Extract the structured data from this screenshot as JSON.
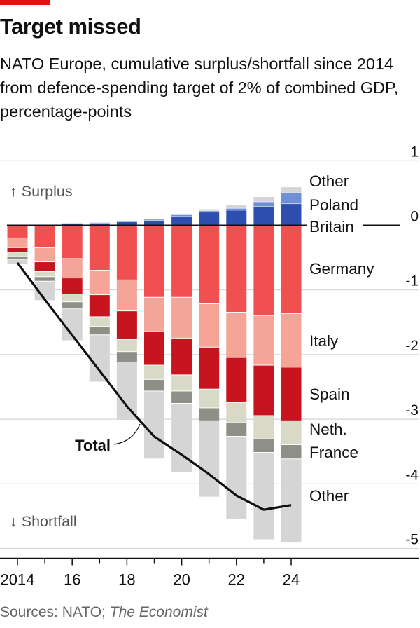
{
  "header": {
    "title": "Target missed",
    "subtitle": "NATO Europe, cumulative surplus/shortfall since 2014 from defence-spending target of 2% of combined GDP, percentage-points"
  },
  "source": {
    "prefix": "Sources: NATO; ",
    "publication": "The Economist"
  },
  "chart_data": {
    "type": "bar",
    "stacked": true,
    "grid": true,
    "ylim": [
      -5,
      1
    ],
    "y_ticks": [
      1,
      0,
      -1,
      -2,
      -3,
      -4,
      -5
    ],
    "x": [
      2014,
      2015,
      2016,
      2017,
      2018,
      2019,
      2020,
      2021,
      2022,
      2023,
      2024
    ],
    "x_tick_labels": [
      "2014",
      "16",
      "18",
      "20",
      "22",
      "24"
    ],
    "direction_labels": {
      "up": "↑ Surplus",
      "down": "↓ Shortfall"
    },
    "surplus_series": [
      {
        "name": "Britain",
        "color": "#2e4fb0",
        "values": [
          0.0,
          0.01,
          0.02,
          0.03,
          0.05,
          0.07,
          0.14,
          0.2,
          0.23,
          0.29,
          0.33
        ]
      },
      {
        "name": "Poland",
        "color": "#6f8fd6",
        "values": [
          0.0,
          0.0,
          0.01,
          0.01,
          0.01,
          0.02,
          0.02,
          0.02,
          0.03,
          0.07,
          0.17
        ]
      },
      {
        "name": "Other",
        "color": "#d5d5d5",
        "values": [
          0.0,
          0.0,
          0.0,
          0.0,
          0.0,
          0.01,
          0.02,
          0.03,
          0.06,
          0.08,
          0.09
        ]
      }
    ],
    "shortfall_series": [
      {
        "name": "Germany",
        "color": "#f05050",
        "values": [
          -0.2,
          -0.35,
          -0.52,
          -0.7,
          -0.85,
          -1.12,
          -1.12,
          -1.22,
          -1.35,
          -1.4,
          -1.37
        ]
      },
      {
        "name": "Italy",
        "color": "#f5a498",
        "values": [
          -0.15,
          -0.22,
          -0.3,
          -0.38,
          -0.48,
          -0.53,
          -0.63,
          -0.67,
          -0.7,
          -0.77,
          -0.83
        ]
      },
      {
        "name": "Spain",
        "color": "#c8141e",
        "values": [
          -0.07,
          -0.15,
          -0.25,
          -0.34,
          -0.44,
          -0.52,
          -0.57,
          -0.65,
          -0.7,
          -0.78,
          -0.83
        ]
      },
      {
        "name": "Neth.",
        "color": "#d8d9c6",
        "values": [
          -0.07,
          -0.08,
          -0.12,
          -0.15,
          -0.19,
          -0.22,
          -0.25,
          -0.29,
          -0.31,
          -0.36,
          -0.37
        ]
      },
      {
        "name": "France",
        "color": "#8e8f86",
        "values": [
          -0.04,
          -0.07,
          -0.1,
          -0.13,
          -0.16,
          -0.18,
          -0.19,
          -0.2,
          -0.21,
          -0.21,
          -0.22
        ]
      },
      {
        "name": "Other",
        "color": "#d5d5d5",
        "values": [
          -0.08,
          -0.3,
          -0.5,
          -0.73,
          -0.9,
          -1.05,
          -1.07,
          -1.18,
          -1.28,
          -1.35,
          -1.3
        ]
      }
    ],
    "legend_labels": [
      "Other",
      "Poland",
      "Britain",
      "Germany",
      "Italy",
      "Spain",
      "Neth.",
      "France",
      "Other"
    ],
    "total": {
      "name": "Total",
      "values": [
        -0.58,
        -1.15,
        -1.7,
        -2.25,
        -2.8,
        -3.27,
        -3.55,
        -3.85,
        -4.18,
        -4.4,
        -4.33
      ]
    }
  }
}
